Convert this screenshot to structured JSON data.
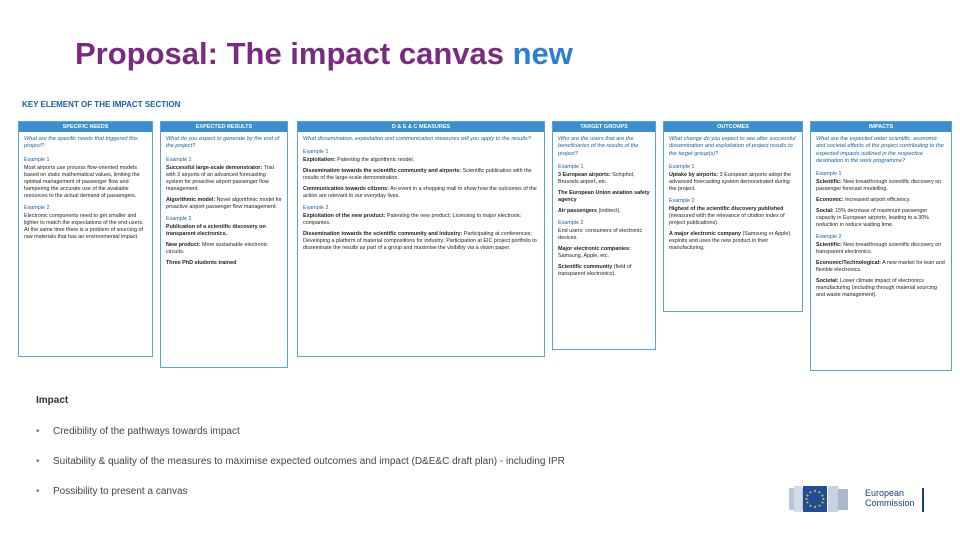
{
  "title": {
    "main": "Proposal: The impact canvas",
    "accent": "new"
  },
  "section_heading": "KEY ELEMENT OF THE IMPACT SECTION",
  "columns": [
    {
      "head": "SPECIFIC NEEDS",
      "question": "What are the specific needs that triggered this project?",
      "items": [
        {
          "label": "Example 1",
          "text": "Most airports use process flow-oriented models based on static mathematical values, limiting the optimal management of passenger flow and hampering the accurate use of the available resources to the actual demand of passengers."
        },
        {
          "label": "Example 2",
          "text": "Electronic components need to get smaller and lighter to match the expectations of the end-users. At the same time there is a problem of sourcing of raw materials that has an environmental impact."
        }
      ]
    },
    {
      "head": "EXPECTED RESULTS",
      "question": "What do you expect to generate by the end of the project?",
      "items": [
        {
          "label": "Example 1",
          "bold": "Successful large-scale demonstrator:",
          "text": "Trial with 3 airports of an advanced forecasting system for proactive airport passenger flow management."
        },
        {
          "label": "",
          "bold": "Algorithmic model:",
          "text": "Novel algorithmic model for proactive airport passenger flow management."
        },
        {
          "label": "Example 2",
          "bold": "Publication of a scientific discovery on transparent electronics.",
          "text": ""
        },
        {
          "label": "",
          "bold": "New product:",
          "text": "More sustainable electronic circuits."
        },
        {
          "label": "",
          "bold": "Three PhD students trained",
          "text": ""
        }
      ]
    },
    {
      "head": "D & E & C MEASURES",
      "question": "What dissemination, exploitation and communication measures will you apply to the results?",
      "items": [
        {
          "label": "Example 1",
          "bold": "Exploitation:",
          "text": "Patenting the algorithmic model."
        },
        {
          "label": "",
          "bold": "Dissemination towards the scientific community and airports:",
          "text": "Scientific publication with the results of the large-scale demonstration."
        },
        {
          "label": "",
          "bold": "Communication towards citizens:",
          "text": "An event in a shopping mall to show how the outcomes of the action are relevant to our everyday lives."
        },
        {
          "label": "Example 2",
          "bold": "Exploitation of the new product:",
          "text": "Patenting the new product; Licensing to major electronic companies."
        },
        {
          "label": "",
          "bold": "Dissemination towards the scientific community and industry:",
          "text": "Participating at conferences; Developing a platform of material compositions for industry; Participation at EIC project portfolio to disseminate the results as part of a group and maximise the visibility via a vision paper."
        }
      ]
    },
    {
      "head": "TARGET GROUPS",
      "question": "Who are the users that are the beneficiaries of the results of the project?",
      "items": [
        {
          "label": "Example 1",
          "bold": "3 European airports:",
          "text": "Schiphol, Brussels airport, etc."
        },
        {
          "label": "",
          "bold": "The European Union aviation safety agency",
          "text": ""
        },
        {
          "label": "",
          "bold": "Air passengers",
          "text": "(indirect)."
        },
        {
          "label": "Example 2",
          "bold": "",
          "text": "End users: consumers of electronic devices."
        },
        {
          "label": "",
          "bold": "Major electronic companies:",
          "text": "Samsung, Apple, etc."
        },
        {
          "label": "",
          "bold": "Scientific community",
          "text": "(field of transparent electronics)."
        }
      ]
    },
    {
      "head": "OUTCOMES",
      "question": "What change do you expect to see after successful dissemination and exploitation of project results to the target group(s)?",
      "items": [
        {
          "label": "Example 1",
          "bold": "Uptake by airports:",
          "text": "3 European airports adopt the advanced forecasting system demonstrated during the project."
        },
        {
          "label": "Example 2",
          "bold": "Highest of the scientific discovery published",
          "text": "(measured with the relevance of citation index of project publications)."
        },
        {
          "label": "",
          "bold": "A major electronic company",
          "text": "(Samsung or Apple) exploits and uses the new product in their manufacturing."
        }
      ]
    },
    {
      "head": "IMPACTS",
      "question": "What are the expected wider scientific, economic and societal effects of the project contributing to the expected impacts outlined in the respective destination in the work programme?",
      "items": [
        {
          "label": "Example 1",
          "bold": "Scientific:",
          "text": "New breakthrough scientific discovery on passenger forecast modelling."
        },
        {
          "label": "",
          "bold": "Economic:",
          "text": "Increased airport efficiency."
        },
        {
          "label": "",
          "bold": "Social:",
          "text": "15% decrease of maximum passenger capacity in European airports, leading to a 30% reduction in reduce waiting time."
        },
        {
          "label": "Example 2",
          "bold": "Scientific:",
          "text": "New breakthrough scientific discovery on transparent electronics."
        },
        {
          "label": "",
          "bold": "Economic/Technological:",
          "text": "A new market for lean and flexible electronics."
        },
        {
          "label": "",
          "bold": "Societal:",
          "text": "Lower climate impact of electronics manufacturing (including through material sourcing and waste management)."
        }
      ]
    }
  ],
  "impact": {
    "title": "Impact",
    "bullets": [
      "Credibility of the pathways towards impact",
      "Suitability & quality of the measures to maximise expected outcomes and impact (D&E&C draft plan) - including IPR",
      "Possibility to present a canvas"
    ]
  },
  "logo": {
    "line1": "European",
    "line2": "Commission"
  },
  "colors": {
    "title": "#7a2a80",
    "accent": "#2a7fd4",
    "column_header": "#3b8fd0",
    "column_border": "#5aa4dc"
  }
}
